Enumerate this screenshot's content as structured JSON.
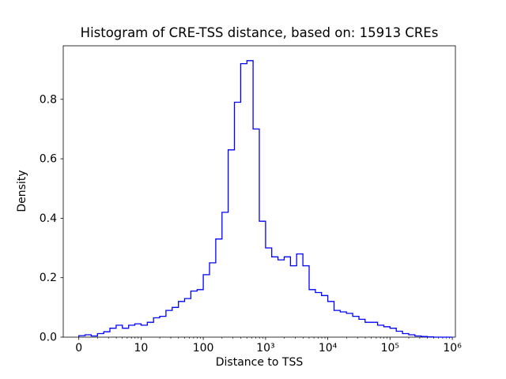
{
  "chart_data": {
    "type": "bar",
    "subtype": "step-histogram",
    "title": "Histogram of CRE-TSS distance, based on: 15913 CREs",
    "xlabel": "Distance to TSS",
    "ylabel": "Density",
    "n_cres": 15913,
    "x_scale": "log10 (symlog-style, axis starts at 0 then decades)",
    "x_tick_labels": [
      "0",
      "10",
      "100",
      "10³",
      "10⁴",
      "10⁵",
      "10⁶"
    ],
    "x_tick_positions_log10": [
      0,
      1,
      2,
      3,
      4,
      5,
      6
    ],
    "y_tick_labels": [
      "0.0",
      "0.2",
      "0.4",
      "0.6",
      "0.8"
    ],
    "y_tick_values": [
      0.0,
      0.2,
      0.4,
      0.6,
      0.8
    ],
    "xlim_log10": [
      -0.25,
      6.05
    ],
    "ylim": [
      0,
      0.98
    ],
    "grid": false,
    "legend": "none",
    "line_color": "#0000ff",
    "bins": {
      "start_log10": 0,
      "width_log10": 0.1,
      "count": 60
    },
    "densities": [
      0.005,
      0.008,
      0.004,
      0.012,
      0.018,
      0.03,
      0.04,
      0.03,
      0.04,
      0.045,
      0.04,
      0.05,
      0.065,
      0.07,
      0.09,
      0.1,
      0.12,
      0.13,
      0.155,
      0.16,
      0.21,
      0.25,
      0.33,
      0.42,
      0.63,
      0.79,
      0.92,
      0.93,
      0.7,
      0.39,
      0.3,
      0.27,
      0.26,
      0.27,
      0.24,
      0.28,
      0.24,
      0.16,
      0.15,
      0.14,
      0.12,
      0.09,
      0.085,
      0.08,
      0.07,
      0.06,
      0.05,
      0.05,
      0.04,
      0.035,
      0.03,
      0.02,
      0.012,
      0.008,
      0.004,
      0.002,
      0.001,
      0.0,
      0.0,
      0.0
    ]
  }
}
